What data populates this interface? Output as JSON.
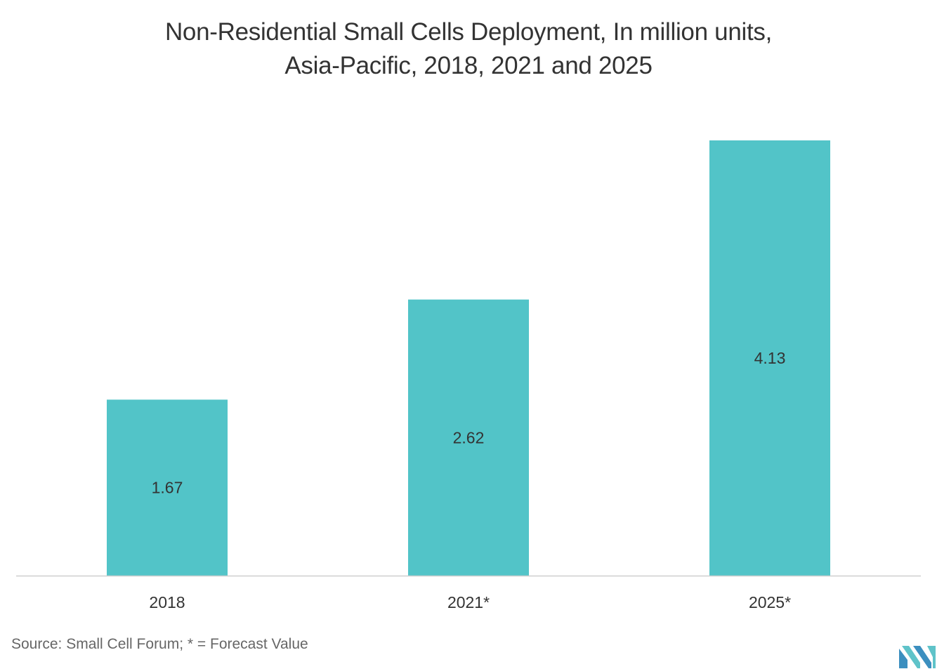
{
  "title_line1": "Non-Residential Small Cells Deployment, In million units,",
  "title_line2": "Asia-Pacific, 2018, 2021 and 2025",
  "source": "Source: Small Cell Forum; * = Forecast Value",
  "colors": {
    "bar": "#52c4c8",
    "axis": "#cfcfcf",
    "text": "#333333",
    "logo_dark": "#3c8fbf",
    "logo_light": "#5fc3c9"
  },
  "chart_data": {
    "type": "bar",
    "title": "Non-Residential Small Cells Deployment, In million units, Asia-Pacific, 2018, 2021 and 2025",
    "categories": [
      "2018",
      "2021*",
      "2025*"
    ],
    "values": [
      1.67,
      2.62,
      4.13
    ],
    "value_labels": [
      "1.67",
      "2.62",
      "4.13"
    ],
    "xlabel": "",
    "ylabel": "",
    "ylim": [
      0,
      4.13
    ],
    "grid": false,
    "legend": "none"
  }
}
